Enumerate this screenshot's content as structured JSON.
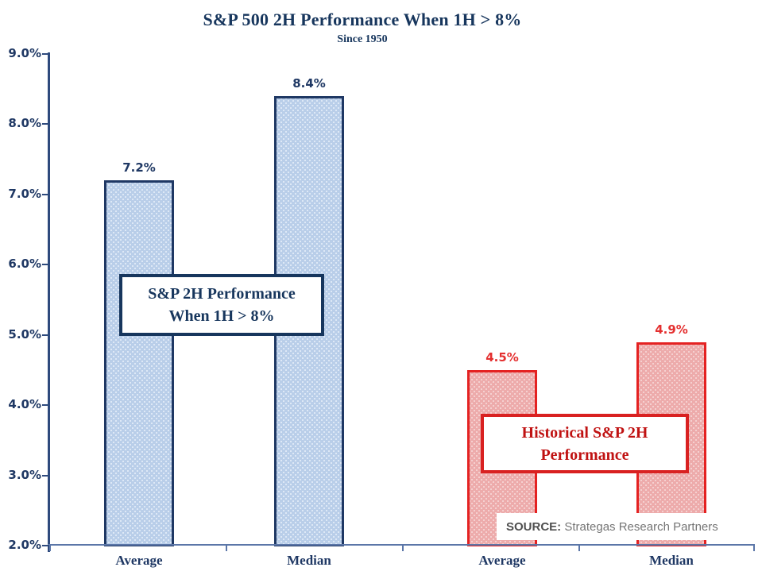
{
  "title": "S&P 500 2H Performance When 1H > 8%",
  "subtitle": "Since 1950",
  "annotations": {
    "blue": {
      "line1": "S&P 2H Performance",
      "line2": "When 1H > 8%",
      "text_color": "#17365d",
      "border_color": "#17365d"
    },
    "red": {
      "line1": "Historical S&P 2H",
      "line2": "Performance",
      "text_color": "#c01212",
      "border_color": "#d92121"
    }
  },
  "source": {
    "label": "SOURCE:",
    "text": " Strategas Research Partners",
    "label_color": "#4f4f4f",
    "text_color": "#757575"
  },
  "colors": {
    "title": "#17365d",
    "axis_text": "#1f3864",
    "y_axis_line": "#2e4a7d",
    "x_axis_line": "#5b76a8",
    "category_text": "#1f3864"
  },
  "chart_data": {
    "type": "bar",
    "title": "S&P 500 2H Performance When 1H > 8%",
    "subtitle": "Since 1950",
    "categories": [
      "Average",
      "Median",
      "Average",
      "Median"
    ],
    "series": [
      {
        "name": "S&P 2H Performance When 1H > 8%",
        "fill": "#b9cee9",
        "dot": "#e9f1fa",
        "border": "#1f3864",
        "label_color": "#1f3864",
        "points": [
          {
            "category": "Average",
            "value": 7.2,
            "label": "7.2%"
          },
          {
            "category": "Median",
            "value": 8.4,
            "label": "8.4%"
          }
        ]
      },
      {
        "name": "Historical S&P 2H Performance",
        "fill": "#edabab",
        "dot": "#f8dcdc",
        "border": "#e42222",
        "label_color": "#e43030",
        "points": [
          {
            "category": "Average",
            "value": 4.5,
            "label": "4.5%"
          },
          {
            "category": "Median",
            "value": 4.9,
            "label": "4.9%"
          }
        ]
      }
    ],
    "ylim": [
      2.0,
      9.0
    ],
    "ytick_step": 1.0,
    "ytick_labels": [
      "2.0%",
      "3.0%",
      "4.0%",
      "5.0%",
      "6.0%",
      "7.0%",
      "8.0%",
      "9.0%"
    ],
    "grid": false,
    "legend": false
  }
}
